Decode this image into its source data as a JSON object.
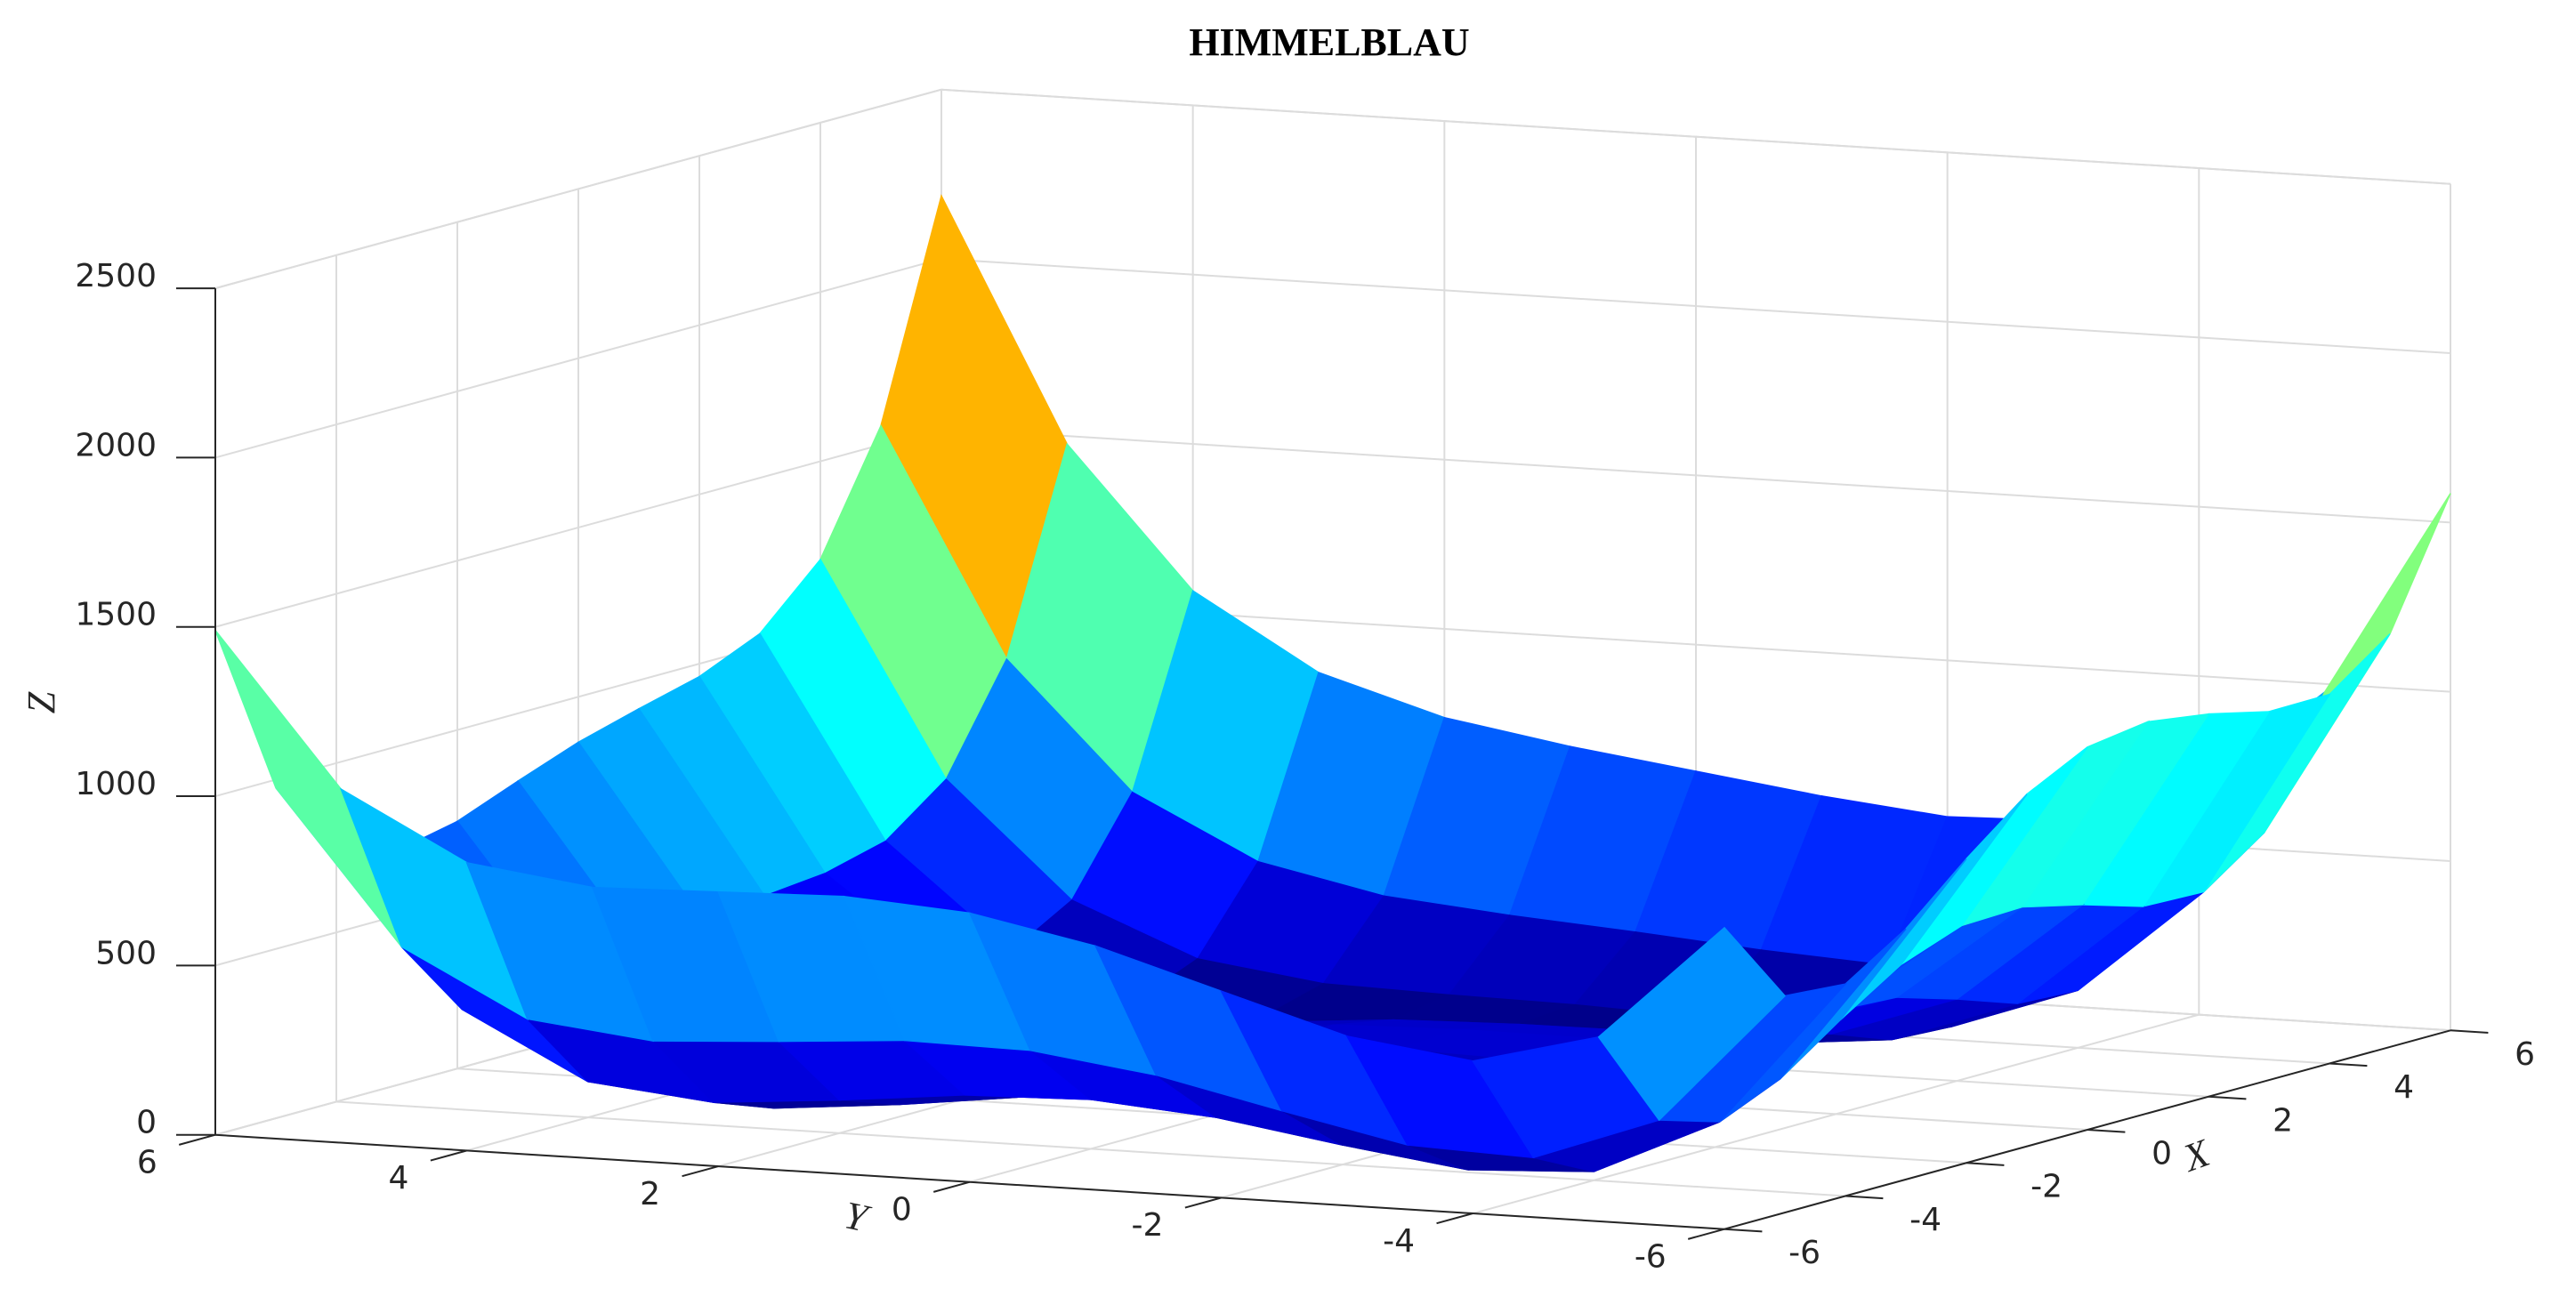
{
  "chart_data": {
    "type": "surface",
    "title": "HIMMELBLAU",
    "xlabel": "X",
    "ylabel": "Y",
    "zlabel": "Z",
    "x": [
      -6,
      -5,
      -4,
      -3,
      -2,
      -1,
      0,
      1,
      2,
      3,
      4,
      5,
      6
    ],
    "y": [
      -6,
      -5,
      -4,
      -3,
      -2,
      -1,
      0,
      1,
      2,
      3,
      4,
      5,
      6
    ],
    "z": [
      [
        890,
        640,
        626,
        740,
        898,
        1040,
        1130,
        1156,
        1130,
        1088,
        1090,
        1220,
        1586
      ],
      [
        544,
        250,
        196,
        274,
        400,
        514,
        580,
        586,
        544,
        490,
        484,
        610,
        976
      ],
      [
        450,
        116,
        26,
        72,
        170,
        260,
        306,
        296,
        242,
        180,
        170,
        296,
        666
      ],
      [
        500,
        130,
        8,
        26,
        100,
        170,
        200,
        178,
        116,
        50,
        40,
        170,
        548
      ],
      [
        610,
        208,
        58,
        52,
        106,
        160,
        178,
        148,
        82,
        16,
        10,
        148,
        538
      ],
      [
        720,
        290,
        116,
        90,
        128,
        170,
        180,
        146,
        80,
        18,
        20,
        170,
        576
      ],
      [
        794,
        340,
        146,
        104,
        130,
        164,
        170,
        136,
        74,
        20,
        34,
        200,
        626
      ],
      [
        820,
        346,
        136,
        82,
        100,
        130,
        136,
        106,
        52,
        10,
        40,
        226,
        676
      ],
      [
        810,
        320,
        98,
        36,
        50,
        80,
        90,
        68,
        26,
        0,
        50,
        260,
        738
      ],
      [
        800,
        298,
        68,
        2,
        16,
        50,
        68,
        58,
        32,
        26,
        100,
        338,
        848
      ],
      [
        850,
        340,
        106,
        40,
        58,
        100,
        130,
        136,
        130,
        148,
        250,
        520,
        1066
      ],
      [
        1044,
        530,
        296,
        234,
        260,
        314,
        360,
        386,
        404,
        450,
        584,
        890,
        1476
      ],
      [
        1490,
        976,
        746,
        692,
        730,
        800,
        866,
        916,
        962,
        1040,
        1210,
        1556,
        2186
      ]
    ],
    "xlim": [
      -6,
      6
    ],
    "ylim": [
      -6,
      6
    ],
    "zlim": [
      0,
      2500
    ],
    "xticks": [
      -6,
      -4,
      -2,
      0,
      2,
      4,
      6
    ],
    "yticks": [
      -6,
      -4,
      -2,
      0,
      2,
      4,
      6
    ],
    "zticks": [
      0,
      500,
      1000,
      1500,
      2000,
      2500
    ],
    "grid": true,
    "colormap": "jet"
  }
}
